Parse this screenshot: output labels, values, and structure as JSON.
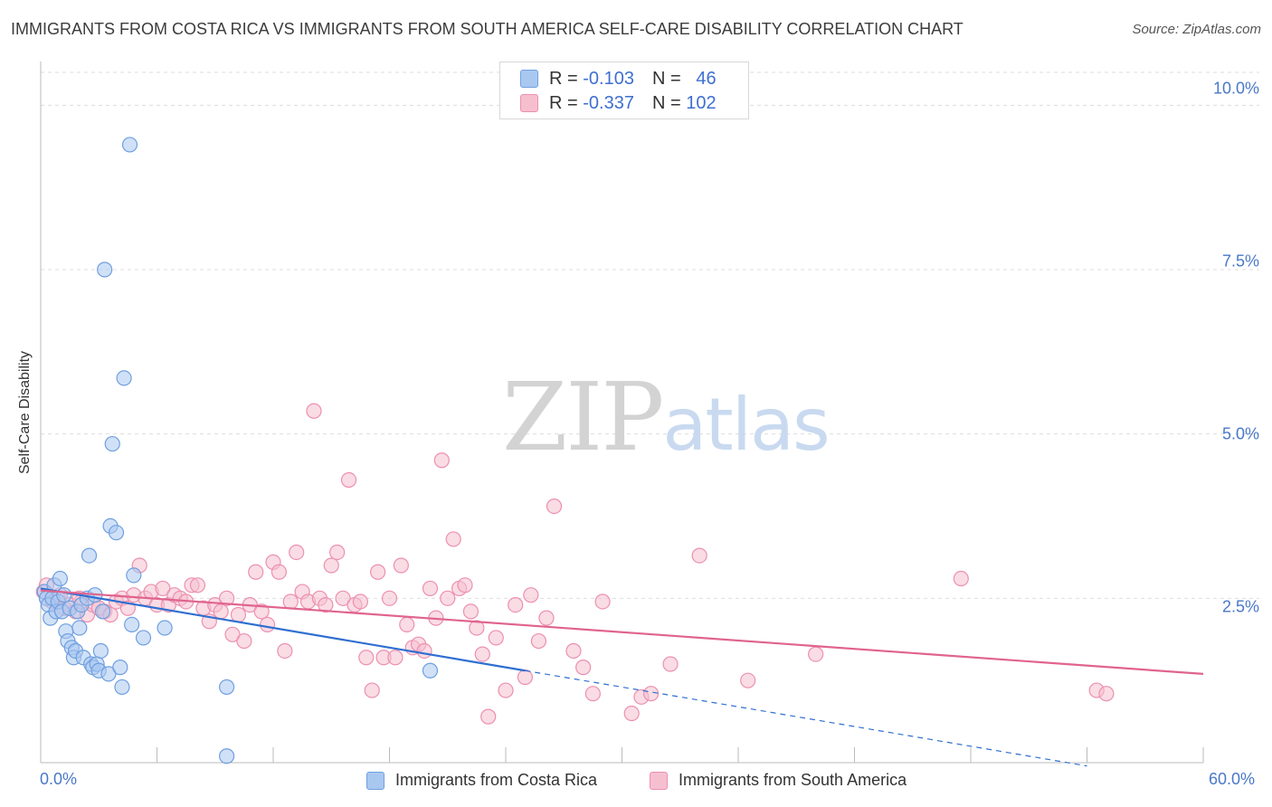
{
  "chart_data": {
    "type": "scatter",
    "title": "IMMIGRANTS FROM COSTA RICA VS IMMIGRANTS FROM SOUTH AMERICA SELF-CARE DISABILITY CORRELATION CHART",
    "source": "Source: ZipAtlas.com",
    "ylabel": "Self-Care Disability",
    "xlim": [
      0,
      60
    ],
    "ylim": [
      0,
      10.5
    ],
    "x_tick_labels": [
      "0.0%",
      "60.0%"
    ],
    "y_ticks": [
      2.5,
      5.0,
      7.5,
      10.0
    ],
    "y_tick_labels": [
      "2.5%",
      "5.0%",
      "7.5%",
      "10.0%"
    ],
    "grid": true,
    "watermark": [
      "ZIP",
      "atlas"
    ],
    "colors": {
      "costa_rica_fill": "#a9c8f0",
      "costa_rica_stroke": "#6f9fe0",
      "costa_rica_line": "#2f6fd0",
      "south_america_fill": "#f6bfd0",
      "south_america_stroke": "#ec90b0",
      "south_america_line": "#e0648e",
      "axis_text": "#4a78c8",
      "grid": "#dddddd"
    },
    "series": [
      {
        "name": "Immigrants from Costa Rica",
        "r_label": "R =",
        "r_value": "-0.103",
        "n_label": "N =",
        "n_value": "46",
        "trend": {
          "x0": 0.0,
          "y0": 2.65,
          "x1": 25.0,
          "y1": 1.4,
          "dash_to_x": 54.0,
          "dash_to_y": -0.05
        },
        "points": [
          [
            0.2,
            2.6
          ],
          [
            0.3,
            2.5
          ],
          [
            0.4,
            2.4
          ],
          [
            0.5,
            2.2
          ],
          [
            0.6,
            2.5
          ],
          [
            0.7,
            2.7
          ],
          [
            0.8,
            2.3
          ],
          [
            0.9,
            2.45
          ],
          [
            1.0,
            2.8
          ],
          [
            1.1,
            2.3
          ],
          [
            1.2,
            2.55
          ],
          [
            1.3,
            2.0
          ],
          [
            1.4,
            1.85
          ],
          [
            1.5,
            2.35
          ],
          [
            1.6,
            1.75
          ],
          [
            1.7,
            1.6
          ],
          [
            1.8,
            1.7
          ],
          [
            1.9,
            2.3
          ],
          [
            2.0,
            2.05
          ],
          [
            2.1,
            2.4
          ],
          [
            2.2,
            1.6
          ],
          [
            2.4,
            2.5
          ],
          [
            2.5,
            3.15
          ],
          [
            2.6,
            1.5
          ],
          [
            2.7,
            1.45
          ],
          [
            2.8,
            2.55
          ],
          [
            2.9,
            1.5
          ],
          [
            3.0,
            1.4
          ],
          [
            3.1,
            1.7
          ],
          [
            3.2,
            2.3
          ],
          [
            3.3,
            7.5
          ],
          [
            3.5,
            1.35
          ],
          [
            3.6,
            3.6
          ],
          [
            3.7,
            4.85
          ],
          [
            3.9,
            3.5
          ],
          [
            4.1,
            1.45
          ],
          [
            4.2,
            1.15
          ],
          [
            4.3,
            5.85
          ],
          [
            4.6,
            9.4
          ],
          [
            4.7,
            2.1
          ],
          [
            4.8,
            2.85
          ],
          [
            5.3,
            1.9
          ],
          [
            6.4,
            2.05
          ],
          [
            9.6,
            1.15
          ],
          [
            9.6,
            0.1
          ],
          [
            20.1,
            1.4
          ]
        ]
      },
      {
        "name": "Immigrants from South America",
        "r_label": "R =",
        "r_value": "-0.337",
        "n_label": "N =",
        "n_value": "102",
        "trend": {
          "x0": 0.0,
          "y0": 2.62,
          "x1": 60.0,
          "y1": 1.35
        },
        "points": [
          [
            0.3,
            2.7
          ],
          [
            0.6,
            2.45
          ],
          [
            0.9,
            2.5
          ],
          [
            1.2,
            2.35
          ],
          [
            1.5,
            2.4
          ],
          [
            1.8,
            2.3
          ],
          [
            2.1,
            2.45
          ],
          [
            2.4,
            2.25
          ],
          [
            2.7,
            2.4
          ],
          [
            3.0,
            2.35
          ],
          [
            3.3,
            2.3
          ],
          [
            3.6,
            2.25
          ],
          [
            3.9,
            2.45
          ],
          [
            4.2,
            2.5
          ],
          [
            4.5,
            2.35
          ],
          [
            4.8,
            2.55
          ],
          [
            5.1,
            3.0
          ],
          [
            5.4,
            2.5
          ],
          [
            5.7,
            2.6
          ],
          [
            6.0,
            2.4
          ],
          [
            6.3,
            2.65
          ],
          [
            6.6,
            2.4
          ],
          [
            6.9,
            2.55
          ],
          [
            7.2,
            2.5
          ],
          [
            7.5,
            2.45
          ],
          [
            7.8,
            2.7
          ],
          [
            8.1,
            2.7
          ],
          [
            8.4,
            2.35
          ],
          [
            8.7,
            2.15
          ],
          [
            9.0,
            2.4
          ],
          [
            9.3,
            2.3
          ],
          [
            9.6,
            2.5
          ],
          [
            9.9,
            1.95
          ],
          [
            10.2,
            2.25
          ],
          [
            10.5,
            1.85
          ],
          [
            10.8,
            2.4
          ],
          [
            11.1,
            2.9
          ],
          [
            11.4,
            2.3
          ],
          [
            11.7,
            2.1
          ],
          [
            12.0,
            3.05
          ],
          [
            12.3,
            2.9
          ],
          [
            12.6,
            1.7
          ],
          [
            12.9,
            2.45
          ],
          [
            13.2,
            3.2
          ],
          [
            13.5,
            2.6
          ],
          [
            13.8,
            2.45
          ],
          [
            14.1,
            5.35
          ],
          [
            14.4,
            2.5
          ],
          [
            14.7,
            2.4
          ],
          [
            15.0,
            3.0
          ],
          [
            15.3,
            3.2
          ],
          [
            15.6,
            2.5
          ],
          [
            15.9,
            4.3
          ],
          [
            16.2,
            2.4
          ],
          [
            16.5,
            2.45
          ],
          [
            16.8,
            1.6
          ],
          [
            17.1,
            1.1
          ],
          [
            17.4,
            2.9
          ],
          [
            17.7,
            1.6
          ],
          [
            18.0,
            2.5
          ],
          [
            18.3,
            1.6
          ],
          [
            18.6,
            3.0
          ],
          [
            18.9,
            2.1
          ],
          [
            19.2,
            1.75
          ],
          [
            19.5,
            1.8
          ],
          [
            19.8,
            1.7
          ],
          [
            20.1,
            2.65
          ],
          [
            20.4,
            2.2
          ],
          [
            20.7,
            4.6
          ],
          [
            21.0,
            2.5
          ],
          [
            21.3,
            3.4
          ],
          [
            21.6,
            2.65
          ],
          [
            21.9,
            2.7
          ],
          [
            22.2,
            2.3
          ],
          [
            22.5,
            2.05
          ],
          [
            22.8,
            1.65
          ],
          [
            23.1,
            0.7
          ],
          [
            23.5,
            1.9
          ],
          [
            24.0,
            1.1
          ],
          [
            24.5,
            2.4
          ],
          [
            25.0,
            1.3
          ],
          [
            25.3,
            2.55
          ],
          [
            25.7,
            1.85
          ],
          [
            26.1,
            2.2
          ],
          [
            26.5,
            3.9
          ],
          [
            27.5,
            1.7
          ],
          [
            28.0,
            1.45
          ],
          [
            28.5,
            1.05
          ],
          [
            29.0,
            2.45
          ],
          [
            30.5,
            0.75
          ],
          [
            31.0,
            1.0
          ],
          [
            31.5,
            1.05
          ],
          [
            32.5,
            1.5
          ],
          [
            34.0,
            3.15
          ],
          [
            36.5,
            1.25
          ],
          [
            40.0,
            1.65
          ],
          [
            47.5,
            2.8
          ],
          [
            54.5,
            1.1
          ],
          [
            55.0,
            1.05
          ],
          [
            0.15,
            2.6
          ],
          [
            1.0,
            2.55
          ],
          [
            2.0,
            2.5
          ]
        ]
      }
    ]
  }
}
